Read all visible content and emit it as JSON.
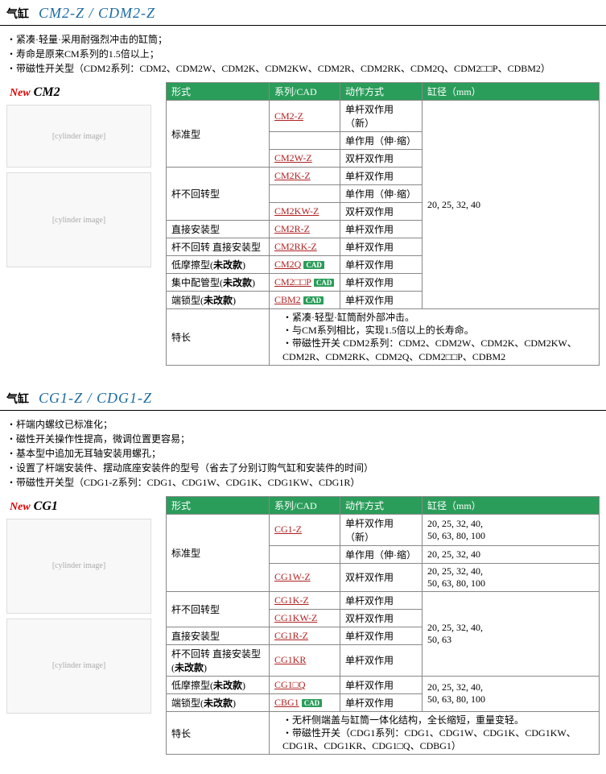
{
  "s1": {
    "label": "气缸",
    "model": "CM2-Z / CDM2-Z",
    "bullets": [
      "紧凑·轻量·采用耐强烈冲击的缸筒；",
      "寿命是原来CM系列的1.5倍以上；",
      "带磁性开关型（CDM2系列：CDM2、CDM2W、CDM2K、CDM2KW、CDM2R、CDM2RK、CDM2Q、CDM2□□P、CDBM2）"
    ],
    "new_txt": "New",
    "new_model": "CM2",
    "headers": [
      "形式",
      "系列/CAD",
      "动作方式",
      "缸径（mm）"
    ],
    "rows": [
      {
        "form": "标准型",
        "form_rs": 3,
        "series": "CM2-Z",
        "cad": false,
        "action": "单杆双作用\n（新）",
        "bore": "20, 25, 32, 40",
        "bore_rs": 11
      },
      {
        "series": "",
        "series_txt": "",
        "action": "单作用（伸·缩）"
      },
      {
        "series": "CM2W-Z",
        "cad": false,
        "action": "双杆双作用"
      },
      {
        "form": "杆不回转型",
        "form_rs": 3,
        "series": "CM2K-Z",
        "cad": false,
        "action": "单杆双作用"
      },
      {
        "series": "",
        "series_txt": "",
        "action": "单作用（伸·缩）"
      },
      {
        "series": "CM2KW-Z",
        "cad": false,
        "action": "双杆双作用"
      },
      {
        "form": "直接安装型",
        "form_rs": 1,
        "series": "CM2R-Z",
        "cad": false,
        "action": "单杆双作用"
      },
      {
        "form": "杆不回转 直接安装型",
        "form_rs": 1,
        "series": "CM2RK-Z",
        "cad": false,
        "action": "单杆双作用"
      },
      {
        "form": "低摩擦型(未改款)",
        "form_rs": 1,
        "series": "CM2Q",
        "cad": true,
        "action": "单杆双作用",
        "boldform": true
      },
      {
        "form": "集中配管型(未改款)",
        "form_rs": 1,
        "series": "CM2□□P",
        "cad": true,
        "action": "单杆双作用",
        "boldform": true
      },
      {
        "form": "端锁型(未改款)",
        "form_rs": 1,
        "series": "CBM2",
        "cad": true,
        "action": "单杆双作用",
        "boldform": true
      }
    ],
    "feat_label": "特长",
    "feat_items": [
      "紧凑·轻型·缸筒耐外部冲击。",
      "与CM系列相比，实现1.5倍以上的长寿命。",
      "带磁性开关 CDM2系列：CDM2、CDM2W、CDM2K、CDM2KW、CDM2R、CDM2RK、CDM2Q、CDM2□□P、CDBM2"
    ]
  },
  "s2": {
    "label": "气缸",
    "model": "CG1-Z / CDG1-Z",
    "bullets": [
      "杆端内螺纹已标准化；",
      "磁性开关操作性提高，微调位置更容易；",
      "基本型中追加无耳轴安装用螺孔；",
      "设置了杆端安装件、摆动底座安装件的型号（省去了分别订购气缸和安装件的时间）",
      "带磁性开关型（CDG1-Z系列：CDG1、CDG1W、CDG1K、CDG1KW、CDG1R）"
    ],
    "new_txt": "New",
    "new_model": "CG1",
    "headers": [
      "形式",
      "系列/CAD",
      "动作方式",
      "缸径（mm）"
    ],
    "rows": [
      {
        "form": "标准型",
        "form_rs": 3,
        "series": "CG1-Z",
        "cad": false,
        "action": "单杆双作用\n（新）",
        "bore": "20, 25, 32, 40,\n50, 63, 80, 100"
      },
      {
        "series": "",
        "series_txt": "",
        "action": "单作用（伸·缩）",
        "bore": "20, 25, 32, 40"
      },
      {
        "series": "CG1W-Z",
        "cad": false,
        "action": "双杆双作用",
        "bore": "20, 25, 32, 40,\n50, 63, 80, 100"
      },
      {
        "form": "杆不回转型",
        "form_rs": 2,
        "series": "CG1K-Z",
        "cad": false,
        "action": "单杆双作用",
        "bore": "20, 25, 32, 40,\n50, 63",
        "bore_rs": 4
      },
      {
        "series": "CG1KW-Z",
        "cad": false,
        "action": "双杆双作用"
      },
      {
        "form": "直接安装型",
        "form_rs": 1,
        "series": "CG1R-Z",
        "cad": false,
        "action": "单杆双作用"
      },
      {
        "form": "杆不回转 直接安装型\n(未改款)",
        "form_rs": 1,
        "series": "CG1KR",
        "cad": false,
        "action": "单杆双作用",
        "boldform": true
      },
      {
        "form": "低摩擦型(未改款)",
        "form_rs": 1,
        "series": "CG1□Q",
        "cad": false,
        "action": "单杆双作用",
        "bore": "20, 25, 32, 40,\n50, 63, 80, 100",
        "bore_rs": 2,
        "boldform": true
      },
      {
        "form": "端锁型(未改款)",
        "form_rs": 1,
        "series": "CBG1",
        "cad": true,
        "action": "单杆双作用",
        "boldform": true
      }
    ],
    "feat_label": "特长",
    "feat_items": [
      "无杆侧端盖与缸筒一体化结构，全长缩短，重量变轻。",
      "带磁性开关（CDG1系列：CDG1、CDG1W、CDG1K、CDG1KW、CDG1R、CDG1KR、CDG1□Q、CDBG1）"
    ]
  }
}
